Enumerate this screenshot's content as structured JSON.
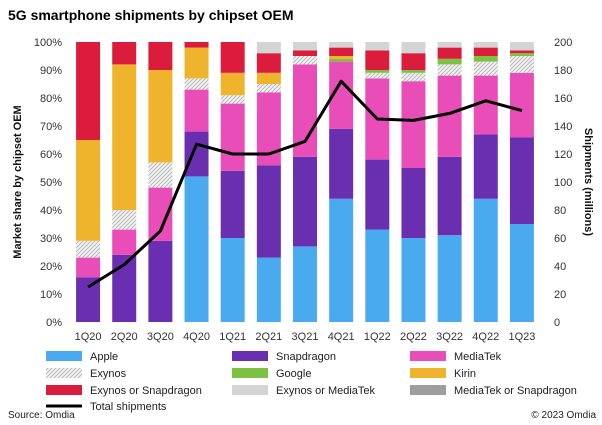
{
  "chart_data": {
    "type": "bar",
    "title": "5G smartphone shipments by chipset OEM",
    "ylabel_left": "Market share by chipset OEM",
    "ylabel_right": "Shipments (millions)",
    "categories": [
      "1Q20",
      "2Q20",
      "3Q20",
      "4Q20",
      "1Q21",
      "2Q21",
      "3Q21",
      "4Q21",
      "1Q22",
      "2Q22",
      "3Q22",
      "4Q22",
      "1Q23"
    ],
    "left_ticks": [
      "0%",
      "10%",
      "20%",
      "30%",
      "40%",
      "50%",
      "60%",
      "70%",
      "80%",
      "90%",
      "100%"
    ],
    "right_ticks": [
      "0",
      "20",
      "40",
      "60",
      "80",
      "100",
      "120",
      "140",
      "160",
      "180",
      "200"
    ],
    "ylim_left": [
      0,
      100
    ],
    "ylim_right": [
      0,
      200
    ],
    "stack_series": [
      {
        "name": "Apple",
        "color": "#4aaaf0",
        "values": [
          0,
          0,
          0,
          52,
          30,
          23,
          27,
          44,
          33,
          30,
          31,
          44,
          35
        ]
      },
      {
        "name": "Snapdragon",
        "color": "#6a2fb0",
        "values": [
          16,
          24,
          29,
          16,
          24,
          33,
          32,
          25,
          25,
          25,
          28,
          23,
          31
        ]
      },
      {
        "name": "MediaTek",
        "color": "#e84db8",
        "values": [
          7,
          9,
          19,
          15,
          24,
          26,
          33,
          24,
          29,
          31,
          29,
          21,
          23
        ]
      },
      {
        "name": "Exynos",
        "color": "#d8d8d8",
        "pattern": "hatch",
        "values": [
          6,
          7,
          9,
          4,
          3,
          3,
          3,
          0,
          2,
          3,
          4,
          5,
          6
        ]
      },
      {
        "name": "Google",
        "color": "#7dc142",
        "values": [
          0,
          0,
          0,
          0,
          0,
          0,
          0,
          1,
          1,
          1,
          2,
          2,
          1
        ]
      },
      {
        "name": "Kirin",
        "color": "#f0b32c",
        "values": [
          36,
          52,
          33,
          11,
          8,
          4,
          0,
          1,
          0,
          0,
          0,
          0,
          0
        ]
      },
      {
        "name": "Exynos or Snapdragon",
        "color": "#dc1c3c",
        "values": [
          35,
          8,
          10,
          2,
          11,
          7,
          2,
          3,
          7,
          6,
          4,
          3,
          1
        ]
      },
      {
        "name": "Exynos or MediaTek",
        "color": "#d4d4d4",
        "values": [
          0,
          0,
          0,
          0,
          0,
          4,
          3,
          2,
          3,
          4,
          2,
          2,
          3
        ]
      },
      {
        "name": "MediaTek or Snapdragon",
        "color": "#9e9e9e",
        "values": [
          0,
          0,
          0,
          0,
          0,
          0,
          0,
          0,
          0,
          0,
          0,
          0,
          0
        ]
      }
    ],
    "line_series": {
      "name": "Total shipments",
      "color": "#000000",
      "values": [
        25,
        41,
        65,
        127,
        120,
        120,
        129,
        172,
        145,
        144,
        149,
        158,
        151
      ]
    },
    "grid": false,
    "legend_position": "bottom"
  },
  "footer": {
    "source": "Source: Omdia",
    "copyright": "© 2023 Omdia"
  }
}
